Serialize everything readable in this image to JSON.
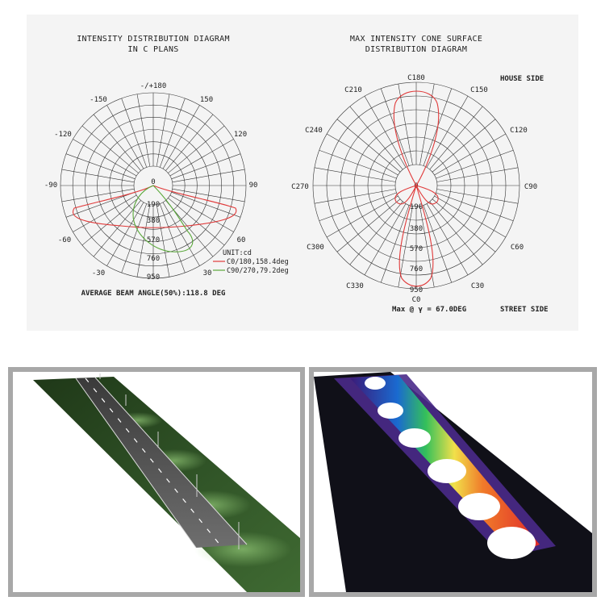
{
  "left_diagram": {
    "title": "INTENSITY DISTRIBUTION DIAGRAM",
    "subtitle": "IN C PLANS",
    "angle_labels": [
      "-/+180",
      "150",
      "120",
      "90",
      "60",
      "30",
      "-30",
      "-60",
      "-90",
      "-120",
      "-150"
    ],
    "radial_labels": [
      "0",
      "190",
      "380",
      "570",
      "760",
      "950"
    ],
    "unit": "UNIT:cd",
    "legend": [
      {
        "label": "C0/180,158.4deg",
        "color": "#e03a3a"
      },
      {
        "label": "C90/270,79.2deg",
        "color": "#5aa83a"
      }
    ],
    "footer": "AVERAGE BEAM ANGLE(50%):118.8 DEG"
  },
  "right_diagram": {
    "title_line1": "MAX INTENSITY CONE SURFACE",
    "title_line2": "DISTRIBUTION DIAGRAM",
    "house_side": "HOUSE SIDE",
    "street_side": "STREET SIDE",
    "c_labels": [
      "C180",
      "C150",
      "C120",
      "C90",
      "C60",
      "C30",
      "C0",
      "C330",
      "C300",
      "C270",
      "C240",
      "C210"
    ],
    "radial_labels": [
      "0",
      "190",
      "380",
      "570",
      "760",
      "950"
    ],
    "footer": "Max @ γ = 67.0DEG",
    "curve_color": "#e03a3a"
  },
  "images": {
    "left": "road-rendering",
    "right": "false-color-illuminance-rendering"
  }
}
